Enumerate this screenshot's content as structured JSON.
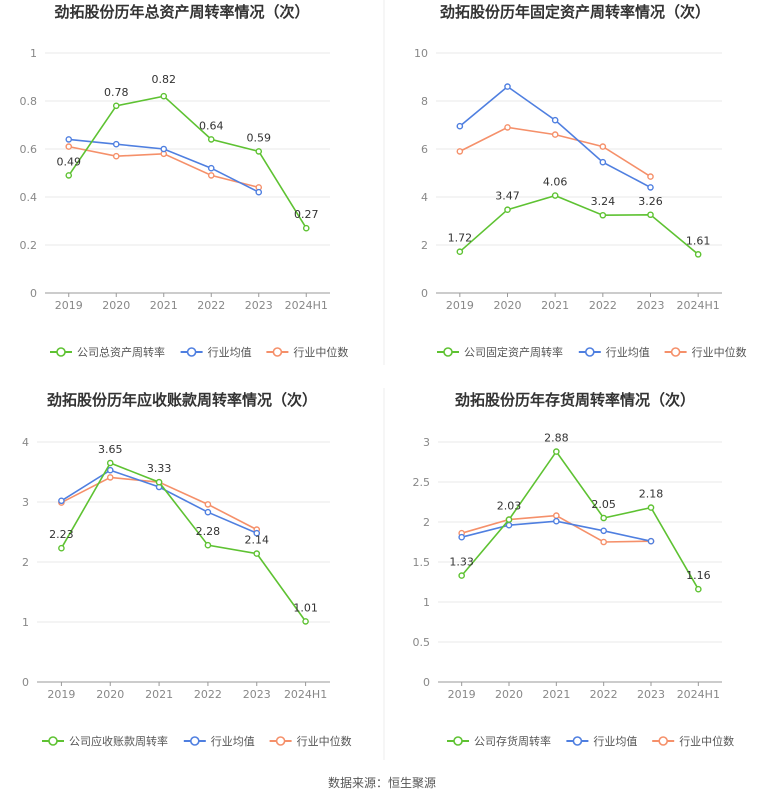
{
  "source": "数据来源：恒生聚源",
  "colors": {
    "company": "#5ec232",
    "avg": "#4f7fe0",
    "median": "#f5906a",
    "grid": "#e8e8e8",
    "axis": "#999999"
  },
  "chart_data": [
    {
      "type": "line",
      "title": "劲拓股份历年总资产周转率情况（次）",
      "categories": [
        "2019",
        "2020",
        "2021",
        "2022",
        "2023",
        "2024H1"
      ],
      "ylim": [
        0,
        1
      ],
      "yticks": [
        "0",
        "0.2",
        "0.4",
        "0.6",
        "0.8",
        "1"
      ],
      "ytick_values": [
        0,
        0.2,
        0.4,
        0.6,
        0.8,
        1
      ],
      "series": [
        {
          "name": "公司总资产周转率",
          "values": [
            0.49,
            0.78,
            0.82,
            0.64,
            0.59,
            0.27
          ],
          "labels": [
            "0.49",
            "0.78",
            "0.82",
            "0.64",
            "0.59",
            "0.27"
          ]
        },
        {
          "name": "行业均值",
          "values": [
            0.64,
            0.62,
            0.6,
            0.52,
            0.42,
            null
          ]
        },
        {
          "name": "行业中位数",
          "values": [
            0.61,
            0.57,
            0.58,
            0.49,
            0.44,
            null
          ]
        }
      ]
    },
    {
      "type": "line",
      "title": "劲拓股份历年固定资产周转率情况（次）",
      "categories": [
        "2019",
        "2020",
        "2021",
        "2022",
        "2023",
        "2024H1"
      ],
      "ylim": [
        0,
        10
      ],
      "yticks": [
        "0",
        "2",
        "4",
        "6",
        "8",
        "10"
      ],
      "ytick_values": [
        0,
        2,
        4,
        6,
        8,
        10
      ],
      "series": [
        {
          "name": "公司固定资产周转率",
          "values": [
            1.72,
            3.47,
            4.06,
            3.24,
            3.26,
            1.61
          ],
          "labels": [
            "1.72",
            "3.47",
            "4.06",
            "3.24",
            "3.26",
            "1.61"
          ]
        },
        {
          "name": "行业均值",
          "values": [
            6.95,
            8.6,
            7.2,
            5.45,
            4.4,
            null
          ]
        },
        {
          "name": "行业中位数",
          "values": [
            5.9,
            6.9,
            6.6,
            6.1,
            4.85,
            null
          ]
        }
      ]
    },
    {
      "type": "line",
      "title": "劲拓股份历年应收账款周转率情况（次）",
      "categories": [
        "2019",
        "2020",
        "2021",
        "2022",
        "2023",
        "2024H1"
      ],
      "ylim": [
        0,
        4
      ],
      "yticks": [
        "0",
        "1",
        "2",
        "3",
        "4"
      ],
      "ytick_values": [
        0,
        1,
        2,
        3,
        4
      ],
      "series": [
        {
          "name": "公司应收账款周转率",
          "values": [
            2.23,
            3.65,
            3.33,
            2.28,
            2.14,
            1.01
          ],
          "labels": [
            "2.23",
            "3.65",
            "3.33",
            "2.28",
            "2.14",
            "1.01"
          ]
        },
        {
          "name": "行业均值",
          "values": [
            3.02,
            3.53,
            3.25,
            2.83,
            2.48,
            null
          ]
        },
        {
          "name": "行业中位数",
          "values": [
            2.99,
            3.41,
            3.33,
            2.96,
            2.54,
            null
          ]
        }
      ]
    },
    {
      "type": "line",
      "title": "劲拓股份历年存货周转率情况（次）",
      "categories": [
        "2019",
        "2020",
        "2021",
        "2022",
        "2023",
        "2024H1"
      ],
      "ylim": [
        0,
        3
      ],
      "yticks": [
        "0",
        "0.5",
        "1",
        "1.5",
        "2",
        "2.5",
        "3"
      ],
      "ytick_values": [
        0,
        0.5,
        1,
        1.5,
        2,
        2.5,
        3
      ],
      "series": [
        {
          "name": "公司存货周转率",
          "values": [
            1.33,
            2.03,
            2.88,
            2.05,
            2.18,
            1.16
          ],
          "labels": [
            "1.33",
            "2.03",
            "2.88",
            "2.05",
            "2.18",
            "1.16"
          ]
        },
        {
          "name": "行业均值",
          "values": [
            1.81,
            1.96,
            2.01,
            1.89,
            1.76,
            null
          ]
        },
        {
          "name": "行业中位数",
          "values": [
            1.86,
            2.03,
            2.08,
            1.75,
            1.76,
            null
          ]
        }
      ]
    }
  ]
}
